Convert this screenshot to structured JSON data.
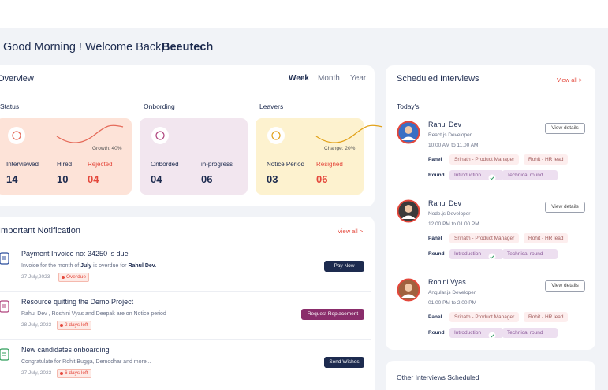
{
  "header": {
    "greeting": "Good Morning ! Welcome Back,",
    "user": "Beeutech"
  },
  "overview": {
    "title": "Overview",
    "tabs": [
      "Week",
      "Month",
      "Year"
    ],
    "sections": [
      {
        "title": "Status",
        "note": "Growth: 40%",
        "stats": [
          {
            "label": "Interviewed",
            "value": "14"
          },
          {
            "label": "Hired",
            "value": "10"
          },
          {
            "label": "Rejected",
            "value": "04"
          }
        ]
      },
      {
        "title": "Onbording",
        "stats": [
          {
            "label": "Onborded",
            "value": "04"
          },
          {
            "label": "in-progress",
            "value": "06"
          }
        ]
      },
      {
        "title": "Leavers",
        "note": "Change: 20%",
        "stats": [
          {
            "label": "Notice Period",
            "value": "03"
          },
          {
            "label": "Resigned",
            "value": "06"
          }
        ]
      }
    ]
  },
  "notifications": {
    "title": "Important Notification",
    "view_all": "View all >",
    "items": [
      {
        "title": "Payment Invoice no: 34250 is due",
        "description": [
          "Invoice for the month of ",
          "July",
          " is overdue for ",
          "Rahul Dev."
        ],
        "date": "27 July,2023",
        "badge": "Overdue",
        "action": "Pay Now"
      },
      {
        "title": "Resource quitting the Demo Project",
        "description": [
          "Rahul Dev , Roshini Vyas and Deepak are on Notice period"
        ],
        "date": "28 July, 2023",
        "badge": "2 days left",
        "action": "Request Replacement"
      },
      {
        "title": "New candidates onboarding",
        "description": [
          "Congratulate for Rohit Bugga, Demodhar and more..."
        ],
        "date": "27 July, 2023",
        "badge": "6 days left",
        "action": "Send Wishes"
      }
    ]
  },
  "interviews": {
    "title": "Scheduled Interviews",
    "view_all": "View all >",
    "today": "Today's",
    "items": [
      {
        "name": "Rahul Dev",
        "role": "React.js Developer",
        "time": "10:00 AM  to 11.00 AM",
        "action": "View details",
        "panel_label": "Panel",
        "panel": [
          "Srinath - Product Manager",
          "Rohit - HR lead"
        ],
        "round_label": "Round",
        "rounds": [
          "Introduction",
          "Technical round"
        ]
      },
      {
        "name": "Rahul Dev",
        "role": "Node.js Developer",
        "time": "12.00 PM  to 01.00 PM",
        "action": "View details",
        "panel_label": "Panel",
        "panel": [
          "Srinath - Product Manager",
          "Rohit - HR lead"
        ],
        "round_label": "Round",
        "rounds": [
          "Introduction",
          "Technical round"
        ]
      },
      {
        "name": "Rohini Vyas",
        "role": "Angular.js Developer",
        "time": "01.00 PM  to 2.00 PM",
        "action": "View details",
        "panel_label": "Panel",
        "panel": [
          "Srinath - Product Manager",
          "Rohit - HR lead"
        ],
        "round_label": "Round",
        "rounds": [
          "Introduction",
          "Technical round"
        ]
      }
    ],
    "other_title": "Other  Interviews Scheduled"
  }
}
